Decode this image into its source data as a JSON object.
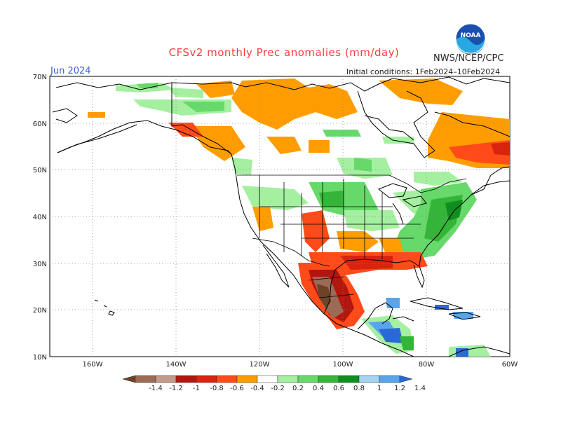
{
  "header": {
    "title": "CFSv2 monthly Prec anomalies (mm/day)",
    "month": "Jun 2024",
    "initial_conditions": "Initial conditions:  1Feb2024–10Feb2024",
    "agency": "NWS/NCEP/CPC",
    "logo_text": "NOAA"
  },
  "axes": {
    "lat_labels": [
      "70N",
      "60N",
      "50N",
      "40N",
      "30N",
      "20N",
      "10N"
    ],
    "lon_labels": [
      "160W",
      "140W",
      "120W",
      "100W",
      "80W",
      "60W"
    ]
  },
  "colorbar": {
    "labels": [
      "-1.4",
      "-1.2",
      "-1",
      "-0.8",
      "-0.6",
      "-0.4",
      "-0.2",
      "0.2",
      "0.4",
      "0.6",
      "0.8",
      "1",
      "1.2",
      "1.4"
    ],
    "colors": [
      "#6b4428",
      "#9c6a55",
      "#c49a8a",
      "#b3160e",
      "#d9230f",
      "#ff4a1a",
      "#ff9d00",
      "#ffffff",
      "#a4f0a0",
      "#66d96a",
      "#34b438",
      "#0e8f1e",
      "#a6d3f2",
      "#5aa5ea",
      "#2a6ad8"
    ]
  },
  "colors": {
    "dry_strong": "#d9230f",
    "dry": "#ff9d00",
    "wet": "#66d96a",
    "wet_strong": "#34b438",
    "very_wet": "#2a6ad8"
  }
}
